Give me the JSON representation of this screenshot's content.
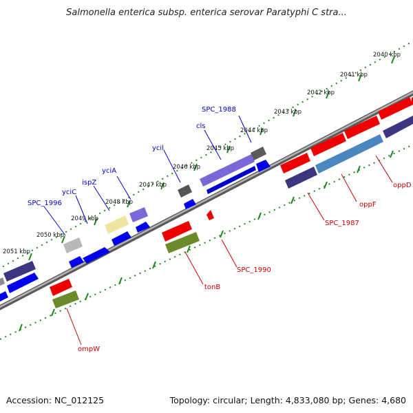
{
  "header": {
    "title": "Salmonella enterica subsp. enterica serovar Paratyphi C stra..."
  },
  "footer": {
    "accession": "Accession: NC_012125",
    "summary": "Topology: circular; Length: 4,833,080 bp; Genes: 4,680"
  },
  "colors": {
    "forward_label": "#0000cc",
    "reverse_label": "#cc0000",
    "tick_green": "#1a8a1a",
    "backbone": "#8a8a8a"
  },
  "scale": {
    "ticks": [
      "2040 kbp",
      "2041 kbp",
      "2042 kbp",
      "2043 kbp",
      "2044 kbp",
      "2045 kbp",
      "2046 kbp",
      "2047 kbp",
      "2048 kbp",
      "2049 kbp",
      "2050 kbp",
      "2051 kbp"
    ]
  },
  "features": {
    "forward_labels": [
      "SPC_1988",
      "cls",
      "ycil",
      "yciA",
      "ispZ",
      "yciC",
      "SPC_1996"
    ],
    "reverse_labels": [
      "oppD",
      "oppF",
      "SPC_1987",
      "SPC_1990",
      "tonB",
      "ompW"
    ]
  }
}
